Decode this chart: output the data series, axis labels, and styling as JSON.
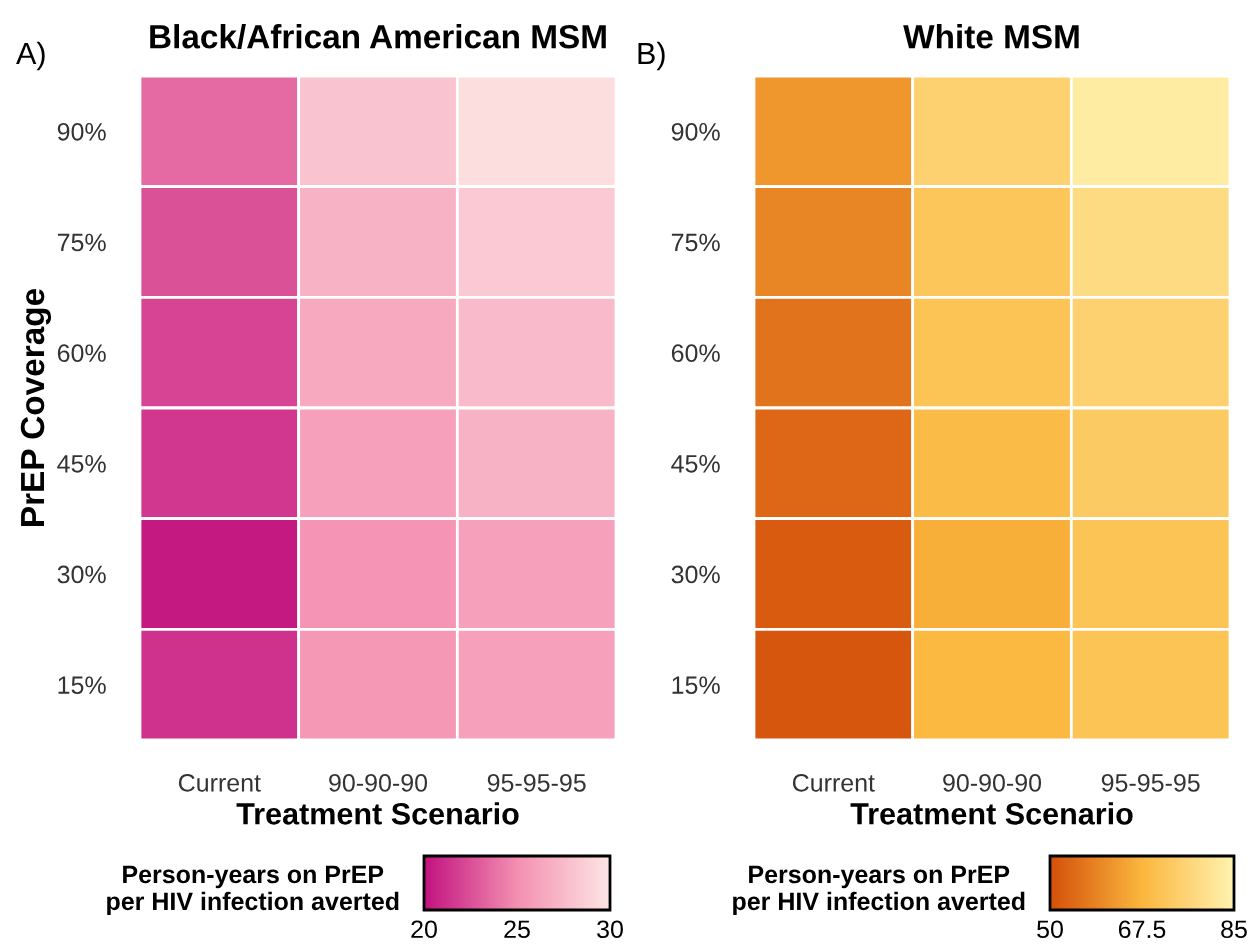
{
  "chart_data": [
    {
      "type": "heatmap",
      "title": "Black/African American MSM",
      "xlabel": "Treatment Scenario",
      "ylabel": "PrEP Coverage",
      "clabel": "Person-years on PrEP\nper HIV infection averted",
      "annotations": [
        "A)"
      ],
      "categories": [
        "Current",
        "90-90-90",
        "95-95-95"
      ],
      "y_categories": [
        "90%",
        "75%",
        "60%",
        "45%",
        "30%",
        "15%"
      ],
      "cells": [
        [
          23.5,
          28,
          29.5
        ],
        [
          22.5,
          27,
          28.3
        ],
        [
          22,
          26.5,
          27.5
        ],
        [
          21.5,
          26,
          27
        ],
        [
          20.3,
          25.3,
          26
        ],
        [
          21.3,
          25.5,
          26
        ]
      ],
      "colors": [
        "#c2127f",
        "#f48fb1",
        "#fde6e4"
      ],
      "clim": [
        20,
        30
      ],
      "cticks": [
        20,
        25,
        30
      ]
    },
    {
      "type": "heatmap",
      "title": "White MSM",
      "xlabel": "Treatment Scenario",
      "clabel": "Person-years on PrEP\nper HIV infection averted",
      "annotations": [
        "B)"
      ],
      "categories": [
        "Current",
        "90-90-90",
        "95-95-95"
      ],
      "y_categories": [
        "90%",
        "75%",
        "60%",
        "45%",
        "30%",
        "15%"
      ],
      "cells": [
        [
          62,
          75,
          83
        ],
        [
          59,
          72,
          78
        ],
        [
          56,
          71,
          75
        ],
        [
          54,
          69,
          73
        ],
        [
          52,
          66,
          71
        ],
        [
          51,
          68,
          71
        ]
      ],
      "colors": [
        "#d4500a",
        "#fbb73e",
        "#fff3b0"
      ],
      "clim": [
        50,
        85
      ],
      "cticks": [
        50,
        {
          "value": 67.5,
          "label": "67.5"
        },
        85
      ]
    }
  ]
}
